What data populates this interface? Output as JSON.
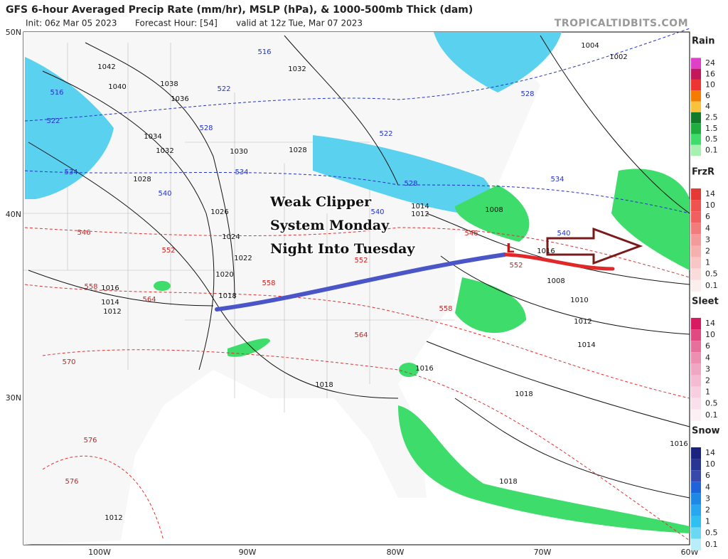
{
  "header": {
    "title": "GFS 6-hour Averaged Precip Rate (mm/hr), MSLP (hPa), & 1000-500mb Thick (dam)",
    "init": "Init: 06z Mar 05 2023",
    "forecast_hour": "Forecast Hour: [54]",
    "valid": "valid at 12z Tue, Mar 07 2023",
    "watermark": "TROPICALTIDBITS.COM"
  },
  "axes": {
    "lat_labels": [
      "50N",
      "40N",
      "30N"
    ],
    "lon_labels": [
      "100W",
      "90W",
      "80W",
      "70W",
      "60W"
    ]
  },
  "annotation": {
    "lines": [
      "Weak Clipper",
      "System Monday",
      "Night Into Tuesday"
    ],
    "low_marker": "L"
  },
  "pressure_labels": [
    "1042",
    "1040",
    "1038",
    "1036",
    "1034",
    "1032",
    "1032",
    "1030",
    "1028",
    "1028",
    "1026",
    "1024",
    "1022",
    "1020",
    "1018",
    "1016",
    "1014",
    "1012",
    "1014",
    "1012",
    "1008",
    "1016",
    "1008",
    "1010",
    "1012",
    "1014",
    "1016",
    "1018",
    "1018",
    "1016",
    "1018",
    "1012",
    "1004",
    "1002"
  ],
  "thickness_labels": {
    "blue": [
      "516",
      "516",
      "522",
      "522",
      "522",
      "528",
      "528",
      "528",
      "534",
      "534",
      "534",
      "540",
      "540",
      "540"
    ],
    "red": [
      "546",
      "546",
      "552",
      "552",
      "552",
      "558",
      "558",
      "558",
      "564",
      "564",
      "570",
      "576",
      "576"
    ]
  },
  "legend": [
    {
      "title": "Rain",
      "labels": [
        "24",
        "16",
        "10",
        "6",
        "4",
        "2.5",
        "1.5",
        "0.5",
        "0.1"
      ]
    },
    {
      "title": "FrzR",
      "labels": [
        "14",
        "10",
        "6",
        "4",
        "3",
        "2",
        "1",
        "0.5",
        "0.1"
      ]
    },
    {
      "title": "Sleet",
      "labels": [
        "14",
        "10",
        "6",
        "4",
        "3",
        "2",
        "1",
        "0.5",
        "0.1"
      ]
    },
    {
      "title": "Snow",
      "labels": [
        "14",
        "10",
        "6",
        "4",
        "3",
        "2",
        "1",
        "0.5",
        "0.1"
      ]
    }
  ]
}
